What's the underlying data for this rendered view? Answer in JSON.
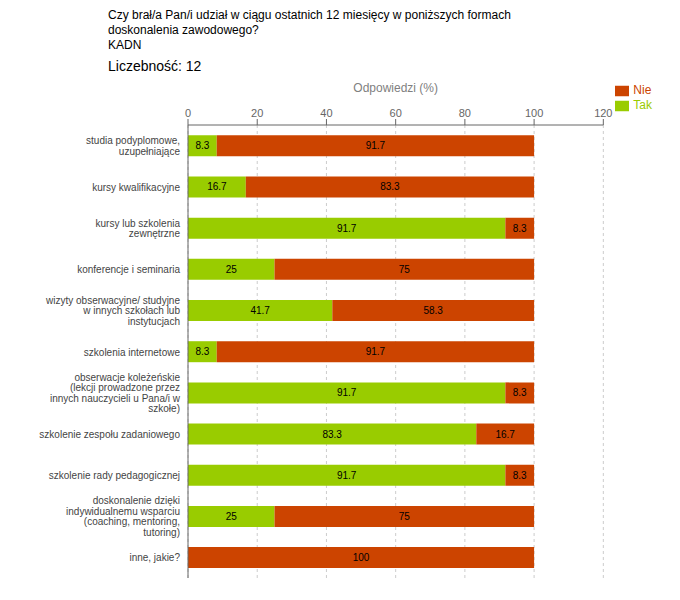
{
  "chart_data": {
    "type": "bar",
    "orientation": "horizontal",
    "stacked": true,
    "data_labels": true,
    "grid": true,
    "legend": "upper right",
    "title": "Czy brał/a Pan/i udział w ciągu ostatnich 12 miesięcy w poniższych formach\ndoskonalenia zawodowego?\nKADN",
    "subtitle": "Liczebność: 12",
    "xlabel": "Odpowiedzi (%)",
    "categories": [
      "studia podyplomowe,\nuzupełniające",
      "kursy kwalifikacyjne",
      "kursy lub szkolenia\nzewnętrzne",
      "konferencje i seminaria",
      "wizyty obserwacyjne/ studyjne\nw innych szkołach lub\ninstytucjach",
      "szkolenia internetowe",
      "obserwacje koleżeńskie\n(lekcji prowadzone przez\ninnych nauczycieli u Pana/i w\nszkołe)",
      "szkolenie zespołu zadaniowego",
      "szkolenie rady pedagogicznej",
      "doskonalenie dzięki\nindywidualnemu wsparciu\n(coaching, mentoring,\ntutoring)",
      "inne, jakie?"
    ],
    "series": [
      {
        "name": "Tak",
        "color": "#99cc00",
        "values": [
          8.3,
          16.7,
          91.7,
          25.0,
          41.7,
          8.3,
          91.7,
          83.3,
          91.7,
          25.0,
          0.0
        ]
      },
      {
        "name": "Nie",
        "color": "#cc4400",
        "values": [
          91.7,
          83.3,
          8.3,
          75.0,
          58.3,
          91.7,
          8.3,
          16.7,
          8.3,
          75.0,
          100.0
        ]
      }
    ],
    "xlim": [
      0,
      120
    ],
    "xticks": [
      0,
      20,
      40,
      60,
      80,
      100,
      120
    ]
  }
}
